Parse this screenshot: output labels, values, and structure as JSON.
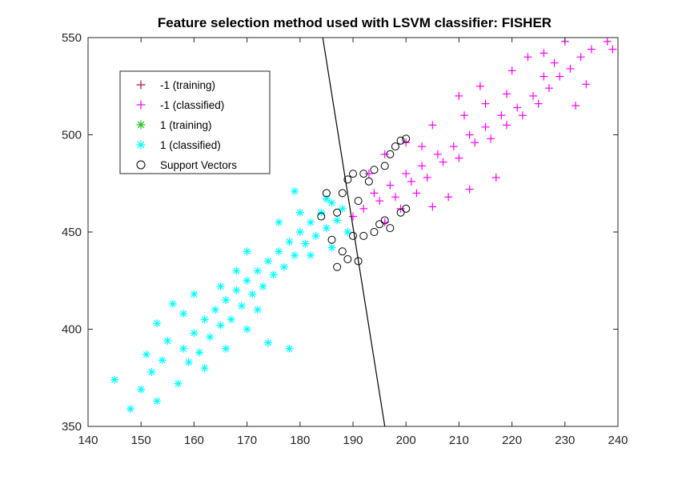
{
  "chart_data": {
    "type": "scatter",
    "title": "Feature selection method used with LSVM classifier: FISHER",
    "xlabel": "",
    "ylabel": "",
    "xlim": [
      140,
      240
    ],
    "ylim": [
      350,
      550
    ],
    "xticks": [
      140,
      150,
      160,
      170,
      180,
      190,
      200,
      210,
      220,
      230,
      240
    ],
    "yticks": [
      350,
      400,
      450,
      500,
      550
    ],
    "grid": false,
    "legend_position": "upper-left",
    "legend": [
      {
        "label": "-1 (training)",
        "marker": "plus",
        "color": "#a2142f"
      },
      {
        "label": "-1 (classified)",
        "marker": "plus",
        "color": "#ff00ff"
      },
      {
        "label": "1 (training)",
        "marker": "asterisk",
        "color": "#20c020"
      },
      {
        "label": "1 (classified)",
        "marker": "asterisk",
        "color": "#00ffff"
      },
      {
        "label": "Support Vectors",
        "marker": "circle",
        "color": "#000000"
      }
    ],
    "series": [
      {
        "name": "-1 (classified)",
        "marker": "plus",
        "color": "#ff00ff",
        "points": [
          [
            190,
            458
          ],
          [
            192,
            462
          ],
          [
            194,
            470
          ],
          [
            195,
            466
          ],
          [
            197,
            474
          ],
          [
            198,
            468
          ],
          [
            200,
            480
          ],
          [
            201,
            476
          ],
          [
            203,
            484
          ],
          [
            204,
            478
          ],
          [
            206,
            490
          ],
          [
            207,
            486
          ],
          [
            209,
            494
          ],
          [
            210,
            488
          ],
          [
            212,
            500
          ],
          [
            213,
            496
          ],
          [
            215,
            504
          ],
          [
            216,
            498
          ],
          [
            218,
            510
          ],
          [
            219,
            505
          ],
          [
            221,
            514
          ],
          [
            222,
            510
          ],
          [
            224,
            520
          ],
          [
            225,
            516
          ],
          [
            227,
            524
          ],
          [
            229,
            530
          ],
          [
            231,
            534
          ],
          [
            233,
            540
          ],
          [
            235,
            544
          ],
          [
            238,
            548
          ],
          [
            239,
            544
          ],
          [
            230,
            548
          ],
          [
            226,
            542
          ],
          [
            228,
            537
          ],
          [
            232,
            515
          ],
          [
            217,
            478
          ],
          [
            212,
            472
          ],
          [
            208,
            468
          ],
          [
            205,
            463
          ],
          [
            214,
            525
          ],
          [
            210,
            520
          ],
          [
            205,
            505
          ],
          [
            220,
            533
          ],
          [
            196,
            455
          ],
          [
            199,
            462
          ],
          [
            202,
            470
          ],
          [
            193,
            480
          ],
          [
            196,
            490
          ],
          [
            200,
            496
          ],
          [
            223,
            540
          ],
          [
            226,
            530
          ],
          [
            234,
            526
          ],
          [
            211,
            510
          ],
          [
            215,
            516
          ],
          [
            219,
            521
          ],
          [
            203,
            494
          ]
        ]
      },
      {
        "name": "1 (classified)",
        "marker": "asterisk",
        "color": "#00ffff",
        "points": [
          [
            145,
            374
          ],
          [
            148,
            359
          ],
          [
            150,
            369
          ],
          [
            152,
            378
          ],
          [
            153,
            363
          ],
          [
            154,
            384
          ],
          [
            155,
            394
          ],
          [
            157,
            372
          ],
          [
            158,
            390
          ],
          [
            160,
            398
          ],
          [
            161,
            388
          ],
          [
            162,
            405
          ],
          [
            163,
            396
          ],
          [
            164,
            410
          ],
          [
            165,
            402
          ],
          [
            166,
            415
          ],
          [
            167,
            405
          ],
          [
            168,
            420
          ],
          [
            169,
            412
          ],
          [
            170,
            425
          ],
          [
            171,
            418
          ],
          [
            172,
            430
          ],
          [
            173,
            422
          ],
          [
            174,
            435
          ],
          [
            175,
            428
          ],
          [
            176,
            440
          ],
          [
            177,
            432
          ],
          [
            178,
            445
          ],
          [
            179,
            438
          ],
          [
            180,
            450
          ],
          [
            181,
            444
          ],
          [
            182,
            455
          ],
          [
            183,
            448
          ],
          [
            184,
            460
          ],
          [
            185,
            452
          ],
          [
            186,
            465
          ],
          [
            187,
            456
          ],
          [
            188,
            462
          ],
          [
            189,
            450
          ],
          [
            179,
            471
          ],
          [
            170,
            400
          ],
          [
            174,
            393
          ],
          [
            166,
            390
          ],
          [
            159,
            383
          ],
          [
            178,
            390
          ],
          [
            156,
            413
          ],
          [
            160,
            418
          ],
          [
            170,
            440
          ],
          [
            176,
            455
          ],
          [
            185,
            467
          ],
          [
            182,
            438
          ],
          [
            162,
            380
          ],
          [
            153,
            403
          ],
          [
            151,
            387
          ],
          [
            168,
            430
          ],
          [
            172,
            410
          ],
          [
            180,
            460
          ],
          [
            158,
            408
          ],
          [
            165,
            422
          ],
          [
            186,
            442
          ]
        ]
      },
      {
        "name": "Support Vectors",
        "marker": "circle",
        "color": "#000000",
        "points": [
          [
            185,
            470
          ],
          [
            187,
            460
          ],
          [
            188,
            470
          ],
          [
            189,
            477
          ],
          [
            190,
            480
          ],
          [
            191,
            466
          ],
          [
            192,
            480
          ],
          [
            193,
            476
          ],
          [
            194,
            482
          ],
          [
            196,
            484
          ],
          [
            197,
            490
          ],
          [
            198,
            494
          ],
          [
            199,
            497
          ],
          [
            200,
            498
          ],
          [
            188,
            440
          ],
          [
            189,
            436
          ],
          [
            187,
            432
          ],
          [
            191,
            435
          ],
          [
            192,
            448
          ],
          [
            194,
            450
          ],
          [
            195,
            454
          ],
          [
            196,
            456
          ],
          [
            197,
            452
          ],
          [
            199,
            460
          ],
          [
            200,
            462
          ],
          [
            184,
            458
          ],
          [
            186,
            446
          ],
          [
            190,
            448
          ]
        ]
      }
    ],
    "decision_boundary": {
      "type": "line",
      "color": "#000000",
      "points": [
        [
          184,
          555
        ],
        [
          196,
          350
        ]
      ]
    }
  }
}
